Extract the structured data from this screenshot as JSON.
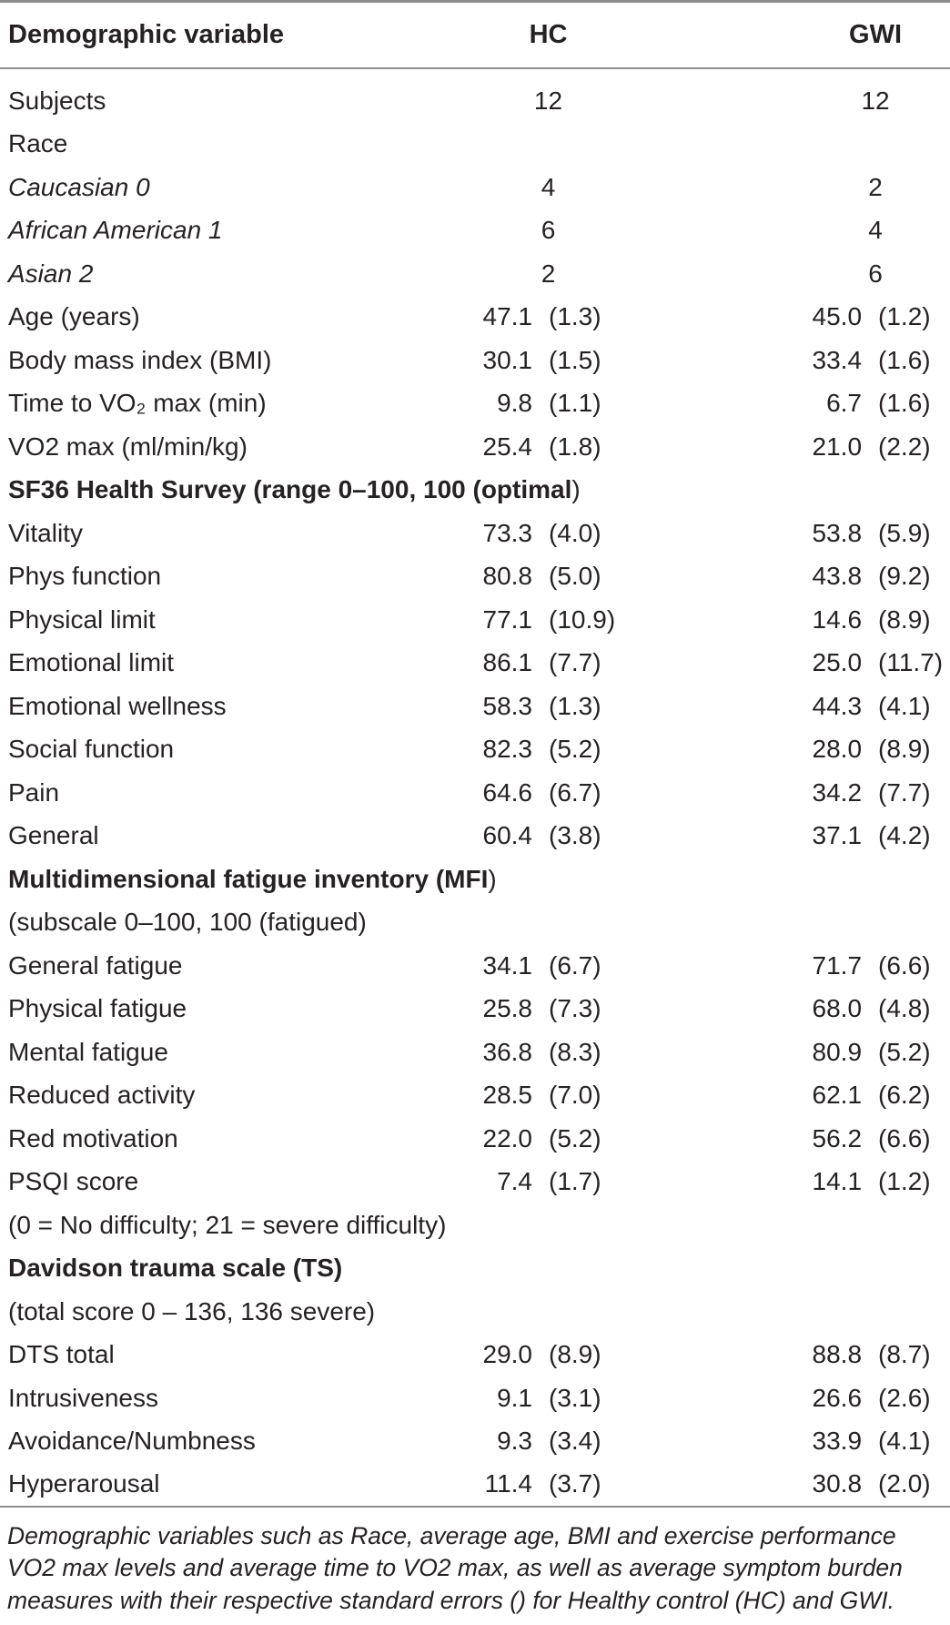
{
  "colors": {
    "text": "#262223",
    "rule": "#8d8d8d",
    "background": "#ffffff"
  },
  "table": {
    "columns": [
      "Demographic variable",
      "HC",
      "GWI"
    ],
    "rows": [
      {
        "label": "Subjects",
        "type": "count",
        "hc_mean": "12",
        "gwi_mean": "12"
      },
      {
        "label": "Race",
        "type": "full"
      },
      {
        "label": "Caucasian 0",
        "type": "count",
        "style": "italic",
        "hc_mean": "4",
        "gwi_mean": "2"
      },
      {
        "label": "African American 1",
        "type": "count",
        "style": "italic",
        "hc_mean": "6",
        "gwi_mean": "4"
      },
      {
        "label": "Asian 2",
        "type": "count",
        "style": "italic",
        "hc_mean": "2",
        "gwi_mean": "6"
      },
      {
        "label": "Age (years)",
        "hc_mean": "47.1",
        "hc_se": "(1.3)",
        "gwi_mean": "45.0",
        "gwi_se": "(1.2)"
      },
      {
        "label": "Body mass index (BMI)",
        "hc_mean": "30.1",
        "hc_se": "(1.5)",
        "gwi_mean": "33.4",
        "gwi_se": "(1.6)"
      },
      {
        "label": "Time to VO₂ max (min)",
        "hc_mean": "9.8",
        "hc_se": "(1.1)",
        "gwi_mean": "6.7",
        "gwi_se": "(1.6)"
      },
      {
        "label": "VO2 max (ml/min/kg)",
        "hc_mean": "25.4",
        "hc_se": "(1.8)",
        "gwi_mean": "21.0",
        "gwi_se": "(2.2)"
      },
      {
        "label": "SF36 Health Survey (range 0–100, 100 (optimal",
        "tail": ")",
        "type": "full",
        "style": "bold"
      },
      {
        "label": "Vitality",
        "hc_mean": "73.3",
        "hc_se": "(4.0)",
        "gwi_mean": "53.8",
        "gwi_se": "(5.9)"
      },
      {
        "label": "Phys function",
        "hc_mean": "80.8",
        "hc_se": "(5.0)",
        "gwi_mean": "43.8",
        "gwi_se": "(9.2)"
      },
      {
        "label": "Physical limit",
        "hc_mean": "77.1",
        "hc_se": "(10.9)",
        "gwi_mean": "14.6",
        "gwi_se": "(8.9)"
      },
      {
        "label": "Emotional limit",
        "hc_mean": "86.1",
        "hc_se": "(7.7)",
        "gwi_mean": "25.0",
        "gwi_se": "(11.7)"
      },
      {
        "label": "Emotional wellness",
        "hc_mean": "58.3",
        "hc_se": "(1.3)",
        "gwi_mean": "44.3",
        "gwi_se": "(4.1)"
      },
      {
        "label": "Social function",
        "hc_mean": "82.3",
        "hc_se": "(5.2)",
        "gwi_mean": "28.0",
        "gwi_se": "(8.9)"
      },
      {
        "label": "Pain",
        "hc_mean": "64.6",
        "hc_se": "(6.7)",
        "gwi_mean": "34.2",
        "gwi_se": "(7.7)"
      },
      {
        "label": "General",
        "hc_mean": "60.4",
        "hc_se": "(3.8)",
        "gwi_mean": "37.1",
        "gwi_se": "(4.2)"
      },
      {
        "label": "Multidimensional fatigue inventory (MFI",
        "tail": ")",
        "type": "full",
        "style": "bold"
      },
      {
        "label": "(subscale 0–100, 100 (fatigued)",
        "type": "full"
      },
      {
        "label": "General fatigue",
        "hc_mean": "34.1",
        "hc_se": "(6.7)",
        "gwi_mean": "71.7",
        "gwi_se": "(6.6)"
      },
      {
        "label": "Physical fatigue",
        "hc_mean": "25.8",
        "hc_se": "(7.3)",
        "gwi_mean": "68.0",
        "gwi_se": "(4.8)"
      },
      {
        "label": "Mental fatigue",
        "hc_mean": "36.8",
        "hc_se": "(8.3)",
        "gwi_mean": "80.9",
        "gwi_se": "(5.2)"
      },
      {
        "label": "Reduced activity",
        "hc_mean": "28.5",
        "hc_se": "(7.0)",
        "gwi_mean": "62.1",
        "gwi_se": "(6.2)"
      },
      {
        "label": "Red motivation",
        "hc_mean": "22.0",
        "hc_se": "(5.2)",
        "gwi_mean": "56.2",
        "gwi_se": "(6.6)"
      },
      {
        "label": "PSQI score",
        "hc_mean": "7.4",
        "hc_se": "(1.7)",
        "gwi_mean": "14.1",
        "gwi_se": "(1.2)"
      },
      {
        "label": "(0 = No difficulty; 21 = severe difficulty)",
        "type": "full"
      },
      {
        "label": "Davidson trauma scale (TS)",
        "type": "full",
        "style": "bold"
      },
      {
        "label": "(total score 0 – 136, 136 severe)",
        "type": "full"
      },
      {
        "label": "DTS total",
        "hc_mean": "29.0",
        "hc_se": "(8.9)",
        "gwi_mean": "88.8",
        "gwi_se": "(8.7)"
      },
      {
        "label": "Intrusiveness",
        "hc_mean": "9.1",
        "hc_se": "(3.1)",
        "gwi_mean": "26.6",
        "gwi_se": "(2.6)"
      },
      {
        "label": "Avoidance/Numbness",
        "hc_mean": "9.3",
        "hc_se": "(3.4)",
        "gwi_mean": "33.9",
        "gwi_se": "(4.1)"
      },
      {
        "label": "Hyperarousal",
        "hc_mean": "11.4",
        "hc_se": "(3.7)",
        "gwi_mean": "30.8",
        "gwi_se": "(2.0)"
      }
    ]
  },
  "footnote": {
    "lines": [
      "Demographic variables such as Race, average age, BMI and exercise performance",
      "VO2 max levels and average time to VO2 max, as well as average symptom burden",
      "measures with their respective standard errors () for Healthy control (HC) and GWI."
    ]
  }
}
